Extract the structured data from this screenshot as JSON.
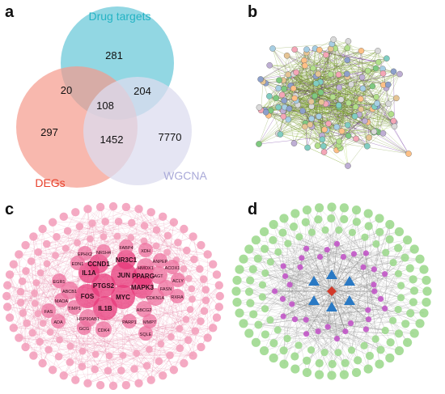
{
  "panels": {
    "a": {
      "letter": "a",
      "sets": {
        "drug_targets": {
          "label": "Drug targets",
          "color": "#24b3c4"
        },
        "degs": {
          "label": "DEGs",
          "color": "#e8412c"
        },
        "wgcna": {
          "label": "WGCNA",
          "color": "#a9a9d8"
        }
      },
      "regions": {
        "drug_only": "281",
        "drug_degs": "20",
        "drug_wgcna": "204",
        "all_three": "108",
        "degs_only": "297",
        "degs_wgcna": "1452",
        "wgcna_only": "7770"
      },
      "fills": {
        "drug": "#7fd0de",
        "degs": "#f59a8c",
        "wgcna": "#dcdcef"
      }
    },
    "b": {
      "letter": "b"
    },
    "c": {
      "letter": "c",
      "labels": {
        "jun": "JUN",
        "ptgs2": "PTGS2",
        "il1a": "IL1A",
        "il1b": "IL1B",
        "fos": "FOS",
        "myc": "MYC",
        "mapk3": "MAPK3",
        "pparg": "PPARG",
        "ccnd1": "CCND1",
        "nr3c1": "NR3C1",
        "hmox1": "HMOX1",
        "agt": "AGT",
        "abcb1": "ABCB1",
        "cdkn1a": "CDKN1A",
        "hsp90ab1": "HSP90AB1",
        "abcg2": "ABCG2",
        "fasn": "FASN",
        "cdk4": "CDK4",
        "egr1": "EGR1",
        "maoa": "MAOA",
        "timp1": "TIMP1",
        "nr1h4": "NR1H4",
        "fabp4": "FABP4",
        "xdh": "XDH",
        "anpep": "ANPEP",
        "ephx2": "EPHX2",
        "acox1": "ACOX1",
        "edn1": "EDN1",
        "acly": "ACLY",
        "rxra": "RXRA",
        "parp1": "PARP1",
        "gcg": "GCG",
        "mmp7": "MMP7",
        "sqle": "SQLE",
        "fas": "FAS",
        "ada": "ADA"
      }
    },
    "d": {
      "letter": "d"
    }
  }
}
